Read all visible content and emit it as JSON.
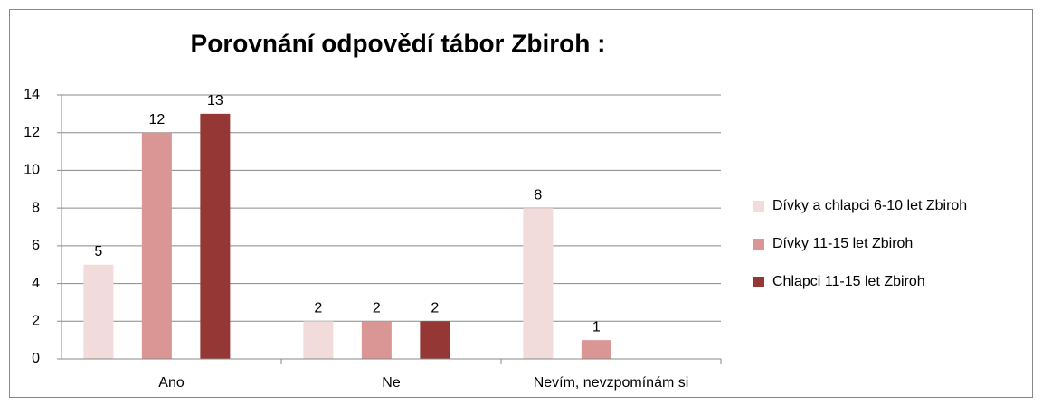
{
  "chart_data": {
    "type": "bar",
    "title": "Porovnání odpovědí tábor Zbiroh :",
    "categories": [
      "Ano",
      "Ne",
      "Nevím, nevzpomínám si"
    ],
    "series": [
      {
        "name": "Dívky a chlapci 6-10 let Zbiroh",
        "color": "#f2dcdb",
        "values": [
          5,
          2,
          8
        ]
      },
      {
        "name": "Dívky 11-15 let Zbiroh",
        "color": "#d99694",
        "values": [
          12,
          2,
          1
        ]
      },
      {
        "name": "Chlapci 11-15 let Zbiroh",
        "color": "#953735",
        "values": [
          13,
          2,
          null
        ]
      }
    ],
    "ylim": [
      0,
      14
    ],
    "yticks": [
      0,
      2,
      4,
      6,
      8,
      10,
      12,
      14
    ],
    "grid": true,
    "legend": "right"
  }
}
